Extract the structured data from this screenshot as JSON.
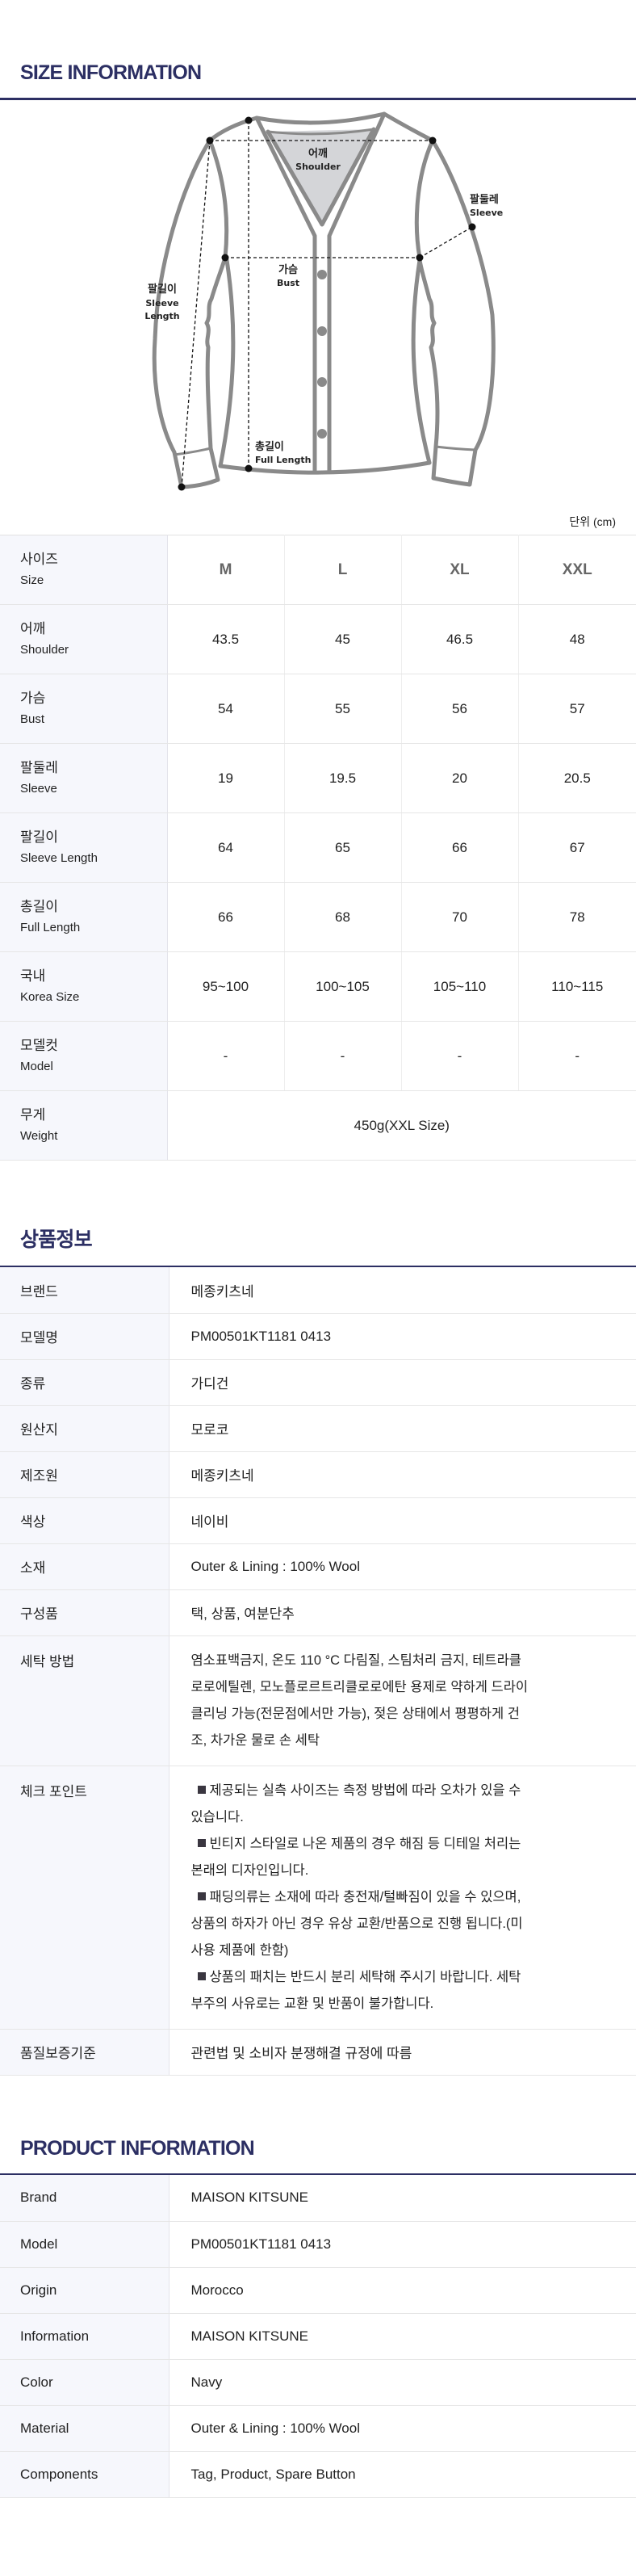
{
  "size_info": {
    "title": "SIZE INFORMATION",
    "diagram_labels": {
      "shoulder_ko": "어깨",
      "shoulder_en": "Shoulder",
      "sleeve_ko": "팔둘레",
      "sleeve_en": "Sleeve",
      "bust_ko": "가슴",
      "bust_en": "Bust",
      "sleeve_length_ko": "팔길이",
      "sleeve_length_en1": "Sleeve",
      "sleeve_length_en2": "Length",
      "full_length_ko": "총길이",
      "full_length_en": "Full Length"
    },
    "unit": "단위 (cm)",
    "table": {
      "header": {
        "ko": "사이즈",
        "en": "Size",
        "sizes": [
          "M",
          "L",
          "XL",
          "XXL"
        ]
      },
      "rows": [
        {
          "ko": "어깨",
          "en": "Shoulder",
          "values": [
            "43.5",
            "45",
            "46.5",
            "48"
          ]
        },
        {
          "ko": "가슴",
          "en": "Bust",
          "values": [
            "54",
            "55",
            "56",
            "57"
          ]
        },
        {
          "ko": "팔둘레",
          "en": "Sleeve",
          "values": [
            "19",
            "19.5",
            "20",
            "20.5"
          ]
        },
        {
          "ko": "팔길이",
          "en": "Sleeve Length",
          "values": [
            "64",
            "65",
            "66",
            "67"
          ]
        },
        {
          "ko": "총길이",
          "en": "Full Length",
          "values": [
            "66",
            "68",
            "70",
            "78"
          ]
        },
        {
          "ko": "국내",
          "en": "Korea Size",
          "values": [
            "95~100",
            "100~105",
            "105~110",
            "110~115"
          ]
        },
        {
          "ko": "모델컷",
          "en": "Model",
          "values": [
            "-",
            "-",
            "-",
            "-"
          ]
        }
      ],
      "weight": {
        "ko": "무게",
        "en": "Weight",
        "value": "450g(XXL Size)"
      }
    }
  },
  "product_info_ko": {
    "title": "상품정보",
    "rows": [
      {
        "label": "브랜드",
        "value": "메종키츠네"
      },
      {
        "label": "모델명",
        "value": "PM00501KT1181 0413"
      },
      {
        "label": "종류",
        "value": "가디건"
      },
      {
        "label": "원산지",
        "value": "모로코"
      },
      {
        "label": "제조원",
        "value": "메종키츠네"
      },
      {
        "label": "색상",
        "value": "네이비"
      },
      {
        "label": "소재",
        "value": "Outer & Lining : 100% Wool"
      },
      {
        "label": "구성품",
        "value": "택, 상품, 여분단추"
      }
    ],
    "wash": {
      "label": "세탁 방법",
      "lines": [
        "염소표백금지, 온도 110 °C 다림질, 스팀처리 금지, 테트라클",
        "로로에틸렌, 모노플로르트리클로로에탄 용제로 약하게 드라이",
        "클리닝 가능(전문점에서만 가능), 젖은 상태에서 평평하게 건",
        "조, 차가운 물로 손 세탁"
      ]
    },
    "checkpoint": {
      "label": "체크 포인트",
      "items": [
        [
          "제공되는 실측 사이즈는 측정 방법에 따라 오차가 있을 수",
          "있습니다."
        ],
        [
          "빈티지 스타일로 나온 제품의 경우 해짐 등 디테일 처리는",
          "본래의 디자인입니다."
        ],
        [
          "패딩의류는 소재에 따라 충전재/털빠짐이 있을 수 있으며,",
          "상품의 하자가 아닌 경우 유상 교환/반품으로 진행 됩니다.(미",
          "사용 제품에 한함)"
        ],
        [
          "상품의 패치는 반드시 분리 세탁해 주시기 바랍니다. 세탁",
          "부주의 사유로는 교환 및 반품이 불가합니다."
        ]
      ]
    },
    "quality": {
      "label": "품질보증기준",
      "value": "관련법 및 소비자 분쟁해결 규정에 따름"
    }
  },
  "product_info_en": {
    "title": "PRODUCT INFORMATION",
    "rows": [
      {
        "label": "Brand",
        "value": "MAISON KITSUNE"
      },
      {
        "label": "Model",
        "value": "PM00501KT1181 0413"
      },
      {
        "label": "Origin",
        "value": "Morocco"
      },
      {
        "label": "Information",
        "value": "MAISON KITSUNE"
      },
      {
        "label": "Color",
        "value": "Navy"
      },
      {
        "label": "Material",
        "value": "Outer & Lining : 100% Wool"
      },
      {
        "label": "Components",
        "value": "Tag, Product, Spare Button"
      }
    ]
  },
  "colors": {
    "title_navy": "#2c2f63",
    "label_bg": "#f6f7fc",
    "garment_stroke": "#8a8a8a",
    "collar_fill": "#d4d5d8"
  }
}
